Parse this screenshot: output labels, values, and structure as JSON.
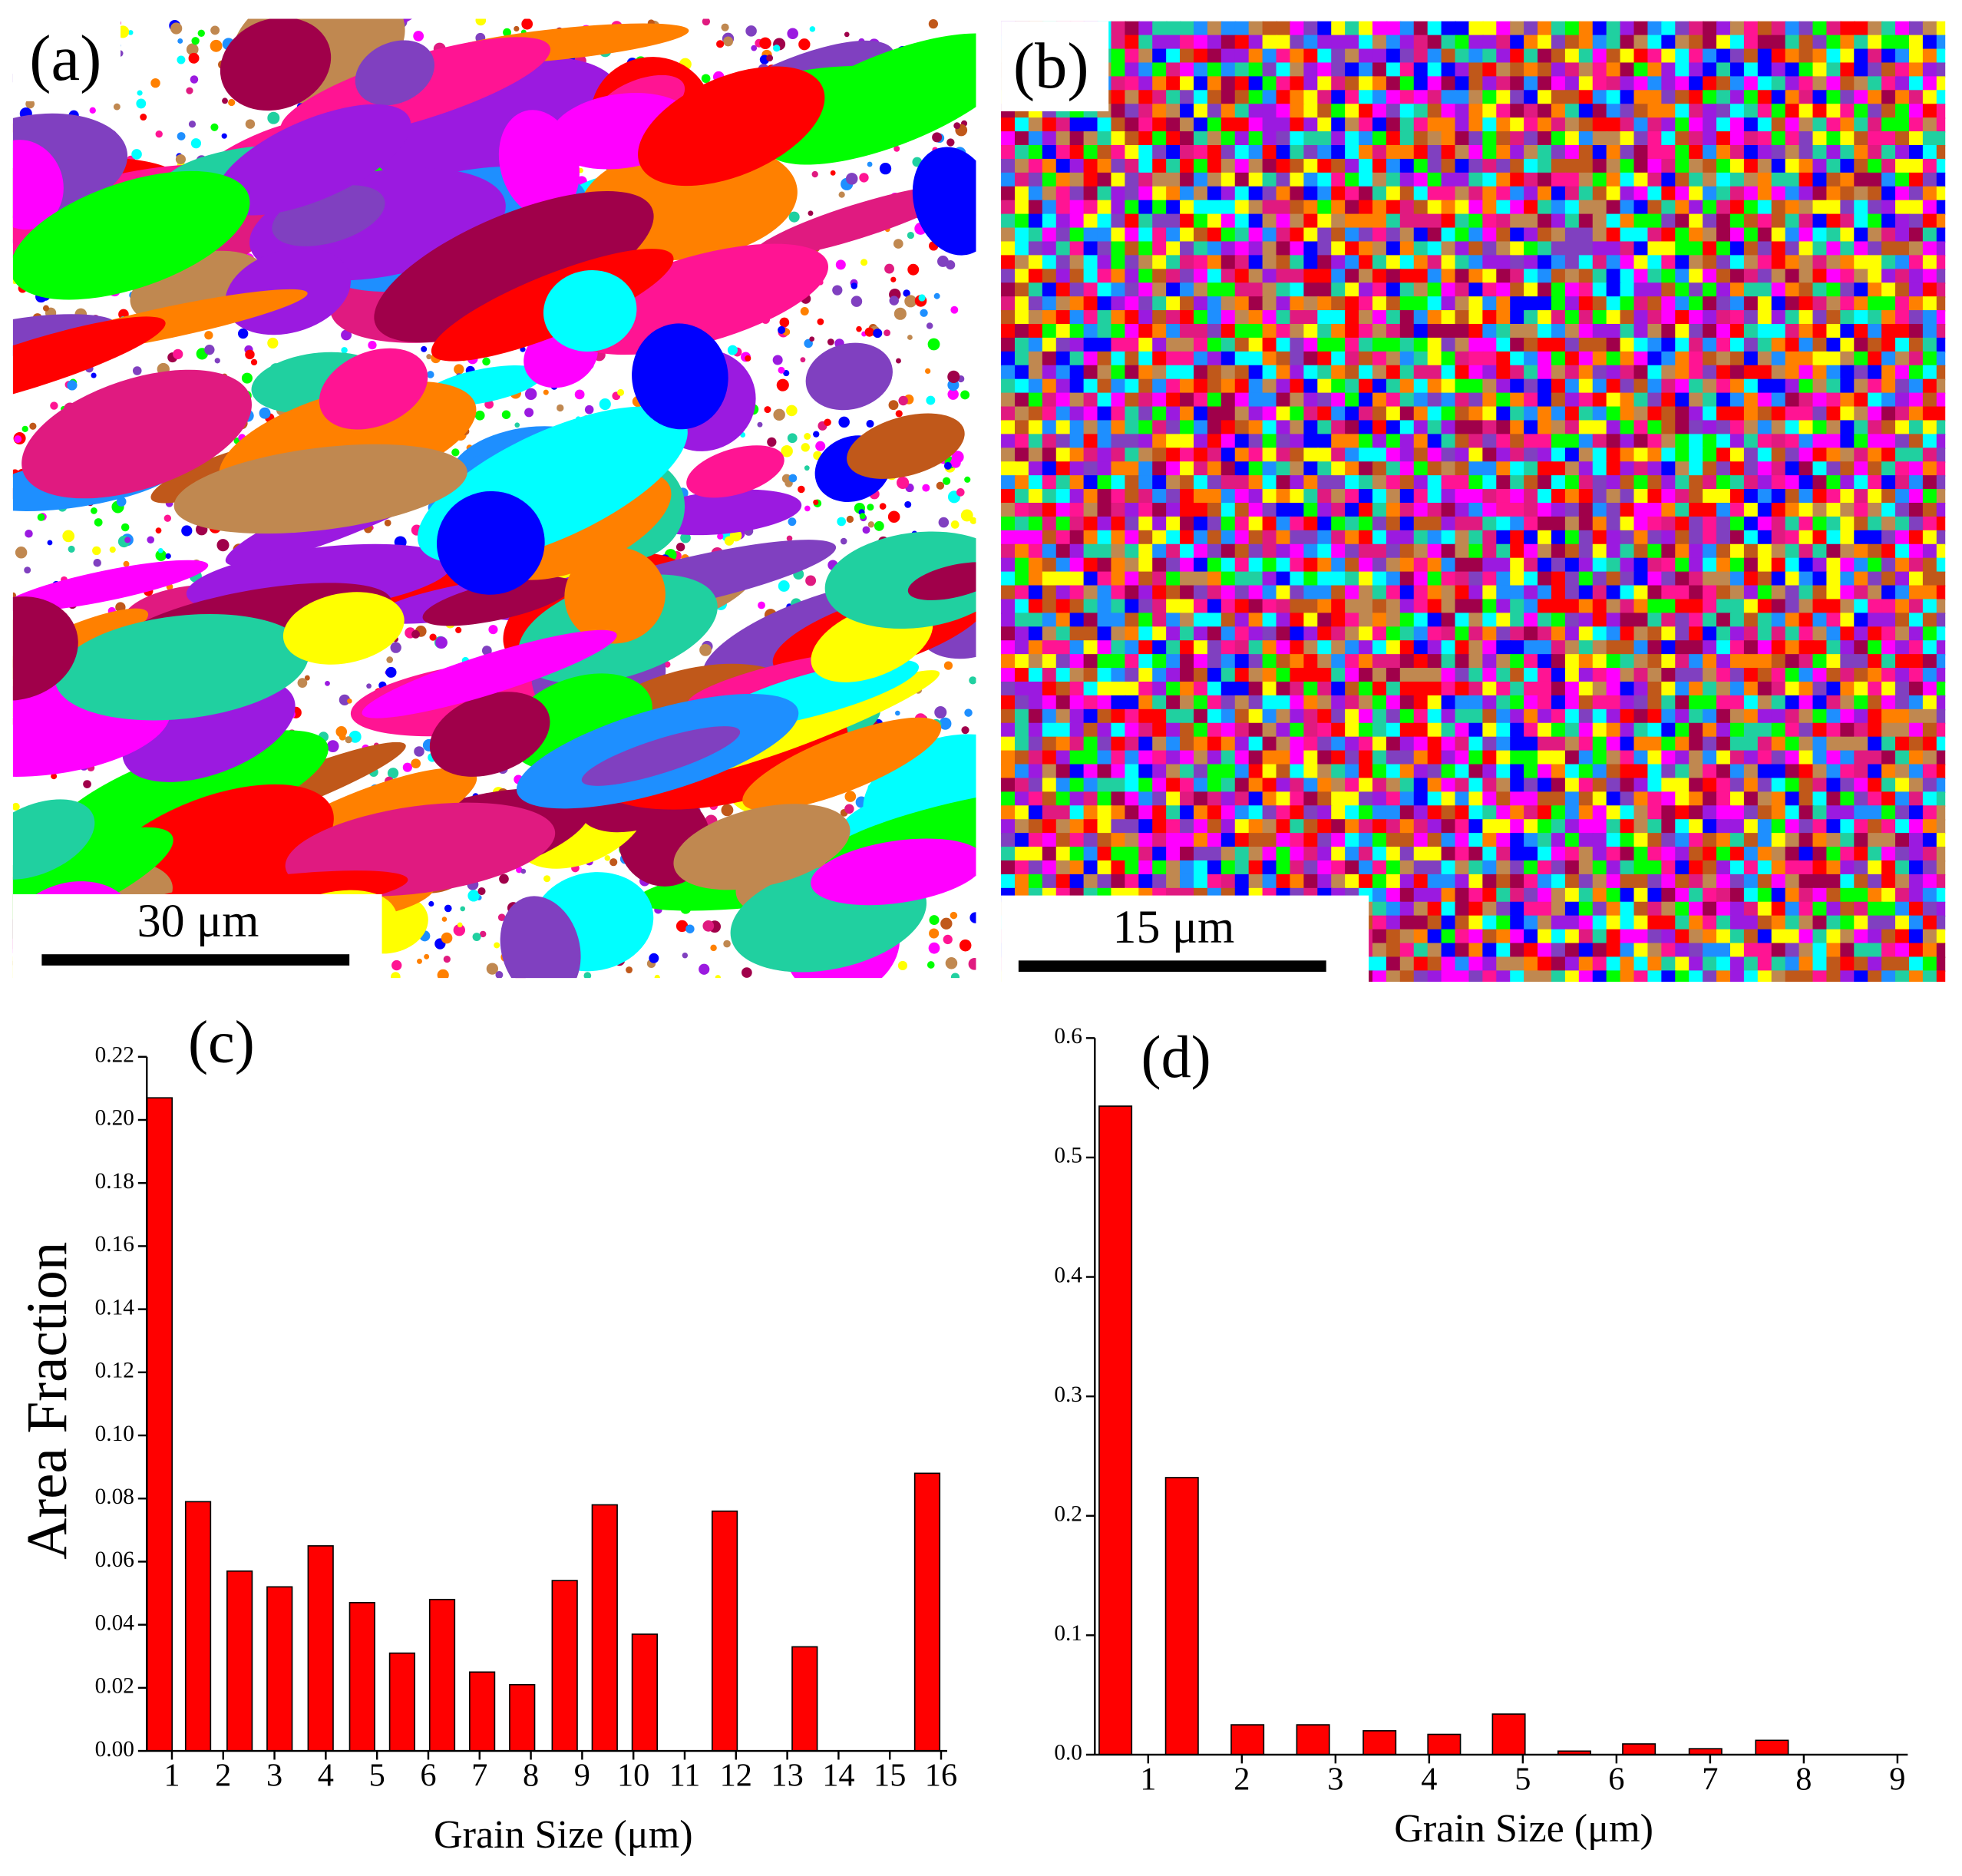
{
  "images": [
    {
      "label": "(a)",
      "scale_bar": "30 μm"
    },
    {
      "label": "(b)",
      "scale_bar": "15 μm"
    }
  ],
  "chart_data": [
    {
      "type": "bar",
      "title": "(c)",
      "xlabel": "Grain Size (μm)",
      "ylabel": "Area Fraction",
      "color": "#ff0000",
      "x": [
        0.76,
        1.51,
        2.32,
        3.1,
        3.9,
        4.71,
        5.49,
        6.27,
        7.05,
        7.83,
        8.66,
        9.44,
        10.22,
        11.78,
        13.34,
        15.73
      ],
      "values": [
        0.207,
        0.079,
        0.057,
        0.052,
        0.065,
        0.047,
        0.031,
        0.048,
        0.025,
        0.021,
        0.054,
        0.078,
        0.037,
        0.076,
        0.033,
        0.088
      ],
      "xlim": [
        0.51,
        16.12
      ],
      "ylim": [
        0,
        0.22
      ],
      "xticks": [
        1,
        2,
        3,
        4,
        5,
        6,
        7,
        8,
        9,
        10,
        11,
        12,
        13,
        14,
        15,
        16
      ],
      "yticks": [
        {
          "value": 0,
          "label": "0.00"
        },
        0.02,
        0.04,
        0.06,
        0.08,
        {
          "value": 0.1,
          "label": "0.10"
        },
        0.12,
        0.14,
        0.16,
        0.18,
        {
          "value": 0.2,
          "label": "0.20"
        },
        0.22
      ]
    },
    {
      "type": "bar",
      "title": "(d)",
      "xlabel": "Grain Size (μm)",
      "color": "#ff0000",
      "x": [
        0.65,
        1.36,
        2.06,
        2.76,
        3.47,
        4.16,
        4.85,
        5.55,
        6.24,
        6.95,
        7.66
      ],
      "values": [
        0.543,
        0.232,
        0.025,
        0.025,
        0.02,
        0.017,
        0.034,
        0.003,
        0.009,
        0.005,
        0.012
      ],
      "xlim": [
        0.43,
        9.11
      ],
      "ylim": [
        0,
        0.6
      ],
      "xticks": [
        1,
        2,
        3,
        4,
        5,
        6,
        7,
        8,
        9
      ],
      "yticks": [
        {
          "value": 0,
          "label": "0.0"
        },
        0.1,
        0.2,
        0.3,
        0.4,
        0.5,
        0.6
      ]
    }
  ]
}
